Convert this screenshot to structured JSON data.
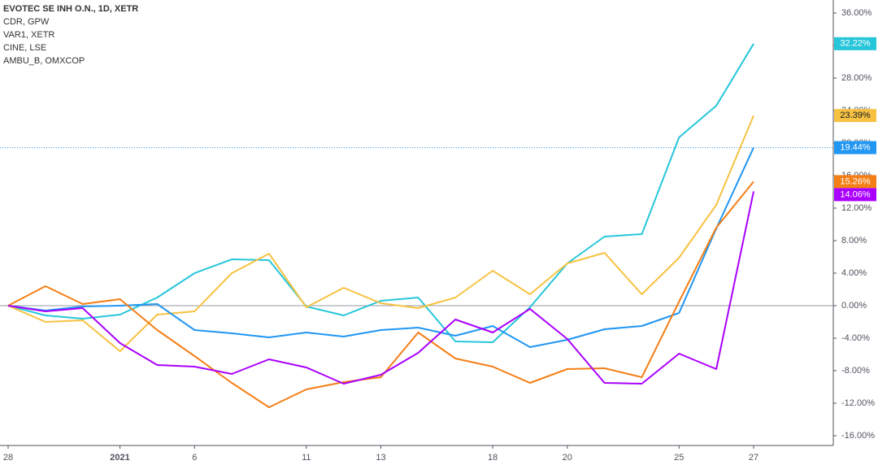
{
  "chart_data": {
    "type": "line",
    "title": "EVOTEC SE INH O.N., 1D, XETR",
    "categories": [
      "28",
      null,
      null,
      "2021",
      null,
      "6",
      null,
      null,
      "11",
      null,
      "13",
      null,
      null,
      "18",
      null,
      "20",
      null,
      null,
      "25",
      null,
      "27"
    ],
    "series": [
      {
        "name": "EVOTEC SE INH O.N., 1D, XETR",
        "color": "#2196f3",
        "price_line": true,
        "last_value_label": "19.44%",
        "values": [
          0,
          -0.6,
          -0.1,
          0.0,
          0.2,
          -3.0,
          -3.4,
          -3.9,
          -3.3,
          -3.8,
          -3.0,
          -2.7,
          -3.7,
          -2.5,
          -5.1,
          -4.2,
          -2.9,
          -2.5,
          -0.9,
          9.5,
          19.44
        ]
      },
      {
        "name": "CDR, GPW",
        "color": "#26c6da",
        "last_value_label": "32.22%",
        "values": [
          0,
          -1.2,
          -1.6,
          -1.1,
          1.0,
          4.0,
          5.7,
          5.6,
          -0.1,
          -1.2,
          0.6,
          1.0,
          -4.4,
          -4.5,
          -0.2,
          5.2,
          8.5,
          8.8,
          20.7,
          24.6,
          32.22
        ]
      },
      {
        "name": "VAR1, XETR",
        "color": "#f7c242",
        "last_value_label": "23.39%",
        "values": [
          0,
          -2.0,
          -1.8,
          -5.6,
          -1.1,
          -0.7,
          4.0,
          6.4,
          -0.2,
          2.2,
          0.3,
          -0.3,
          1.0,
          4.3,
          1.4,
          5.2,
          6.5,
          1.4,
          5.9,
          12.4,
          23.39
        ]
      },
      {
        "name": "CINE, LSE",
        "color": "#f57f17",
        "last_value_label": "15.26%",
        "values": [
          0,
          2.4,
          0.2,
          0.8,
          -3.0,
          -6.2,
          -9.5,
          -12.5,
          -10.3,
          -9.4,
          -8.8,
          -3.3,
          -6.5,
          -7.5,
          -9.5,
          -7.8,
          -7.7,
          -8.8,
          0.5,
          9.6,
          15.26
        ]
      },
      {
        "name": "AMBU_B, OMXCOP",
        "color": "#aa00ff",
        "last_value_label": "14.06%",
        "values": [
          0,
          -0.7,
          -0.3,
          -4.6,
          -7.3,
          -7.5,
          -8.4,
          -6.6,
          -7.6,
          -9.6,
          -8.5,
          -5.8,
          -1.7,
          -3.3,
          -0.4,
          -4.1,
          -9.5,
          -9.6,
          -5.9,
          -7.8,
          14.06
        ]
      }
    ],
    "ylim": [
      -17.2,
      37.6
    ],
    "yticks": [
      {
        "value": -16,
        "label": "-16.00%"
      },
      {
        "value": -12,
        "label": "-12.00%"
      },
      {
        "value": -8,
        "label": "-8.00%"
      },
      {
        "value": -4,
        "label": "-4.00%"
      },
      {
        "value": 0,
        "label": "0.00%"
      },
      {
        "value": 4,
        "label": "4.00%"
      },
      {
        "value": 8,
        "label": "8.00%"
      },
      {
        "value": 12,
        "label": "12.00%"
      },
      {
        "value": 16,
        "label": "16.00%"
      },
      {
        "value": 20,
        "label": "20.00%"
      },
      {
        "value": 24,
        "label": "24.00%"
      },
      {
        "value": 28,
        "label": "28.00%"
      },
      {
        "value": 32,
        "label": "32.00%"
      },
      {
        "value": 36,
        "label": "36.00%"
      }
    ]
  }
}
